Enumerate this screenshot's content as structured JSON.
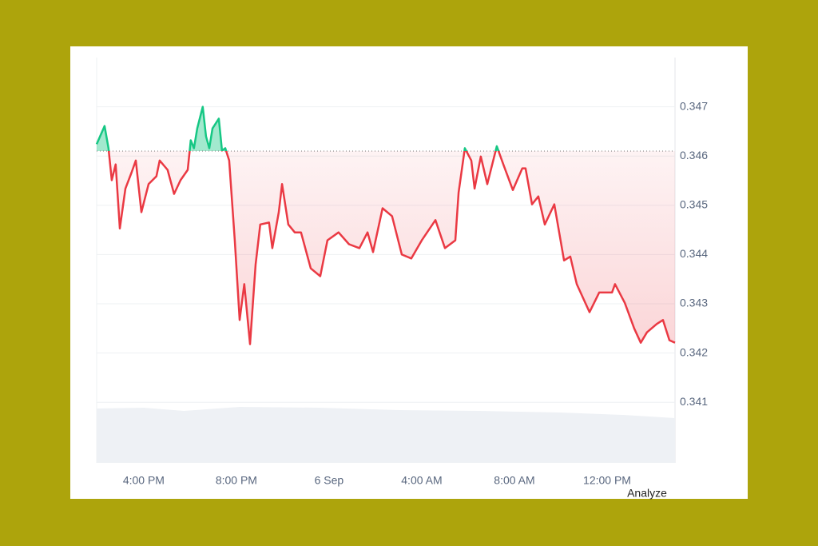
{
  "chart_data": {
    "type": "line",
    "x": [
      13.97,
      14.31,
      14.48,
      14.62,
      14.79,
      14.97,
      15.21,
      15.48,
      15.66,
      15.9,
      16.21,
      16.55,
      16.69,
      17.03,
      17.31,
      17.59,
      17.9,
      18.03,
      18.17,
      18.31,
      18.55,
      18.69,
      18.83,
      18.97,
      19.24,
      19.38,
      19.52,
      19.69,
      19.93,
      20.14,
      20.34,
      20.59,
      20.83,
      21.03,
      21.41,
      21.55,
      21.83,
      21.97,
      22.24,
      22.52,
      22.79,
      23.21,
      23.62,
      23.93,
      24.41,
      24.86,
      25.31,
      25.66,
      25.9,
      26.31,
      26.72,
      27.14,
      27.55,
      28.0,
      28.59,
      29.0,
      29.45,
      29.59,
      29.86,
      30.14,
      30.28,
      30.55,
      30.83,
      31.24,
      31.52,
      31.93,
      32.34,
      32.48,
      32.76,
      33.03,
      33.31,
      33.72,
      34.14,
      34.41,
      34.69,
      35.24,
      35.66,
      36.21,
      36.34,
      36.76,
      37.17,
      37.45,
      37.72,
      38.14,
      38.41,
      38.69,
      38.93
    ],
    "values": [
      0.34624,
      0.34661,
      0.34616,
      0.34551,
      0.34583,
      0.34453,
      0.34534,
      0.34567,
      0.34591,
      0.34486,
      0.34543,
      0.34559,
      0.34591,
      0.34572,
      0.34523,
      0.34551,
      0.34572,
      0.34632,
      0.34616,
      0.34656,
      0.347,
      0.3464,
      0.34616,
      0.34656,
      0.34676,
      0.34611,
      0.34616,
      0.34591,
      0.34429,
      0.34267,
      0.3434,
      0.34218,
      0.3438,
      0.34461,
      0.34465,
      0.34413,
      0.34486,
      0.34543,
      0.34461,
      0.34445,
      0.34445,
      0.34372,
      0.34356,
      0.34429,
      0.34445,
      0.34421,
      0.34413,
      0.34445,
      0.34405,
      0.34494,
      0.34478,
      0.344,
      0.34392,
      0.34429,
      0.3447,
      0.34413,
      0.34429,
      0.34526,
      0.34616,
      0.34591,
      0.34534,
      0.34599,
      0.34543,
      0.3462,
      0.34583,
      0.34531,
      0.34575,
      0.34575,
      0.34502,
      0.34518,
      0.34461,
      0.34502,
      0.34388,
      0.34396,
      0.3434,
      0.34283,
      0.34323,
      0.34323,
      0.3434,
      0.34302,
      0.3425,
      0.34221,
      0.34242,
      0.34259,
      0.34267,
      0.34226,
      0.34221
    ],
    "baseline": 0.3461,
    "up_color": "#16c784",
    "down_color": "#ea3943",
    "xlim": [
      13.97,
      38.93
    ],
    "xticks": [
      {
        "value": 16,
        "label": "4:00 PM"
      },
      {
        "value": 20,
        "label": "8:00 PM"
      },
      {
        "value": 24,
        "label": "6 Sep"
      },
      {
        "value": 28,
        "label": "4:00 AM"
      },
      {
        "value": 32,
        "label": "8:00 AM"
      },
      {
        "value": 36,
        "label": "12:00 PM"
      }
    ],
    "ylim": [
      0.33977,
      0.348
    ],
    "yticks": [
      0.341,
      0.342,
      0.343,
      0.344,
      0.345,
      0.346,
      0.347
    ],
    "grid": true,
    "button": "Analyze"
  }
}
